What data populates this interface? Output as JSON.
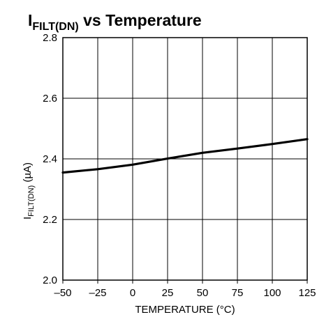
{
  "chart_data": {
    "type": "line",
    "title": {
      "main": "I",
      "subscript": "FILT(DN)",
      "rest": " vs Temperature"
    },
    "xlabel": "TEMPERATURE (°C)",
    "ylabel": {
      "main": "I",
      "subscript": "FILT(DN)",
      "rest": " (µA)"
    },
    "xlim": [
      -50,
      125
    ],
    "ylim": [
      2.0,
      2.8
    ],
    "xticks": [
      -50,
      -25,
      0,
      25,
      50,
      75,
      100,
      125
    ],
    "xtick_labels": [
      "–50",
      "–25",
      "0",
      "25",
      "50",
      "75",
      "100",
      "125"
    ],
    "yticks": [
      2.0,
      2.2,
      2.4,
      2.6,
      2.8
    ],
    "ytick_labels": [
      "2.0",
      "2.2",
      "2.4",
      "2.6",
      "2.8"
    ],
    "grid": true,
    "series": [
      {
        "x": [
          -50,
          -25,
          0,
          25,
          50,
          75,
          100,
          125
        ],
        "y": [
          2.355,
          2.366,
          2.381,
          2.401,
          2.42,
          2.434,
          2.449,
          2.465
        ]
      }
    ],
    "colors": {
      "line": "#000000",
      "grid": "#000000",
      "background": "#ffffff"
    }
  }
}
